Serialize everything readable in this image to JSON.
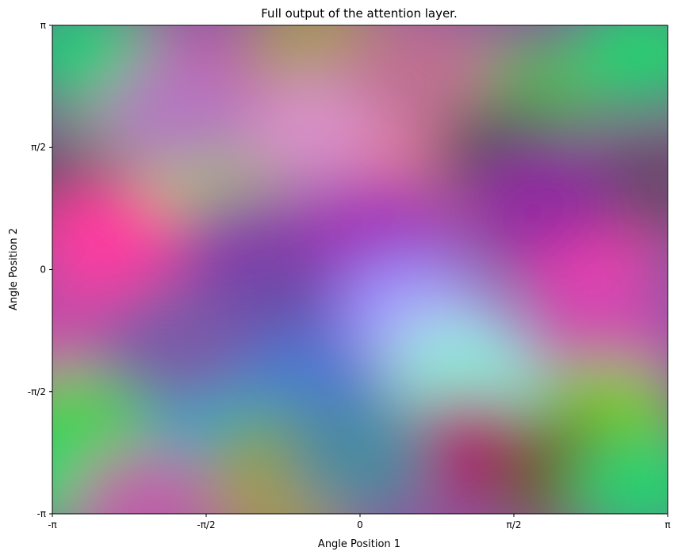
{
  "chart_data": {
    "type": "heatmap",
    "title": "Full output of the attention layer.",
    "xlabel": "Angle Position 1",
    "ylabel": "Angle Position 2",
    "xlim": [
      -3.14159,
      3.14159
    ],
    "ylim": [
      -3.14159,
      3.14159
    ],
    "grid": false,
    "x_ticks": [
      {
        "value": -3.14159,
        "label": "-π"
      },
      {
        "value": -1.5708,
        "label": "-π/2"
      },
      {
        "value": 0,
        "label": "0"
      },
      {
        "value": 1.5708,
        "label": "π/2"
      },
      {
        "value": 3.14159,
        "label": "π"
      }
    ],
    "y_ticks": [
      {
        "value": -3.14159,
        "label": "-π"
      },
      {
        "value": -1.5708,
        "label": "-π/2"
      },
      {
        "value": 0,
        "label": "0"
      },
      {
        "value": 1.5708,
        "label": "π/2"
      },
      {
        "value": 3.14159,
        "label": "π"
      }
    ],
    "color_regions": [
      {
        "x": -2.8,
        "y": 2.8,
        "color": "#22cc77"
      },
      {
        "x": -1.6,
        "y": 2.4,
        "color": "#c45aa8"
      },
      {
        "x": -0.4,
        "y": 2.9,
        "color": "#a89a55"
      },
      {
        "x": 1.7,
        "y": 2.3,
        "color": "#5fb060"
      },
      {
        "x": 2.9,
        "y": 2.8,
        "color": "#28d070"
      },
      {
        "x": -0.4,
        "y": 1.8,
        "color": "#d890c8"
      },
      {
        "x": 0.6,
        "y": 1.1,
        "color": "#e87e98"
      },
      {
        "x": -2.3,
        "y": 1.3,
        "color": "#c8ff40"
      },
      {
        "x": -1.5,
        "y": 0.8,
        "color": "#a8c868"
      },
      {
        "x": -3.0,
        "y": 1.0,
        "color": "#5a4a6a"
      },
      {
        "x": -2.6,
        "y": 0.4,
        "color": "#ff3aa0"
      },
      {
        "x": -2.9,
        "y": -0.9,
        "color": "#c84aa8"
      },
      {
        "x": -1.1,
        "y": 0.3,
        "color": "#8e3aa8"
      },
      {
        "x": 0.2,
        "y": 0.5,
        "color": "#a030b8"
      },
      {
        "x": 2.3,
        "y": 0.3,
        "color": "#f040b0"
      },
      {
        "x": 2.5,
        "y": -0.9,
        "color": "#cc4ab0"
      },
      {
        "x": 3.0,
        "y": 1.1,
        "color": "#6a4a6a"
      },
      {
        "x": -0.8,
        "y": -0.5,
        "color": "#6a4aa8"
      },
      {
        "x": 0.5,
        "y": -0.5,
        "color": "#9a8aff"
      },
      {
        "x": 0.9,
        "y": -1.0,
        "color": "#b0c0f0"
      },
      {
        "x": 1.1,
        "y": -1.5,
        "color": "#88f0d8"
      },
      {
        "x": -0.6,
        "y": -1.5,
        "color": "#4a7ad0"
      },
      {
        "x": -1.5,
        "y": -2.2,
        "color": "#1aa8c8"
      },
      {
        "x": -2.9,
        "y": -2.0,
        "color": "#55d040"
      },
      {
        "x": -3.0,
        "y": -2.7,
        "color": "#10d868"
      },
      {
        "x": 1.1,
        "y": -2.3,
        "color": "#b00070"
      },
      {
        "x": 2.5,
        "y": -1.9,
        "color": "#7ad010"
      },
      {
        "x": 2.1,
        "y": -2.6,
        "color": "#6a5a30"
      },
      {
        "x": 2.9,
        "y": -2.8,
        "color": "#28d070"
      },
      {
        "x": -0.8,
        "y": -2.5,
        "color": "#6aaa40"
      },
      {
        "x": -0.8,
        "y": -3.0,
        "color": "#a59a50"
      },
      {
        "x": -2.2,
        "y": -3.0,
        "color": "#c060a8"
      },
      {
        "x": 1.5,
        "y": 1.4,
        "color": "#505050"
      },
      {
        "x": 1.8,
        "y": 0.9,
        "color": "#902aa0"
      },
      {
        "x": -1.9,
        "y": -1.0,
        "color": "#7a5aa8"
      },
      {
        "x": 0.0,
        "y": -2.4,
        "color": "#4a8aa0"
      },
      {
        "x": -1.9,
        "y": 2.0,
        "color": "#b478c0"
      },
      {
        "x": 0.6,
        "y": 2.6,
        "color": "#c07090"
      }
    ]
  }
}
